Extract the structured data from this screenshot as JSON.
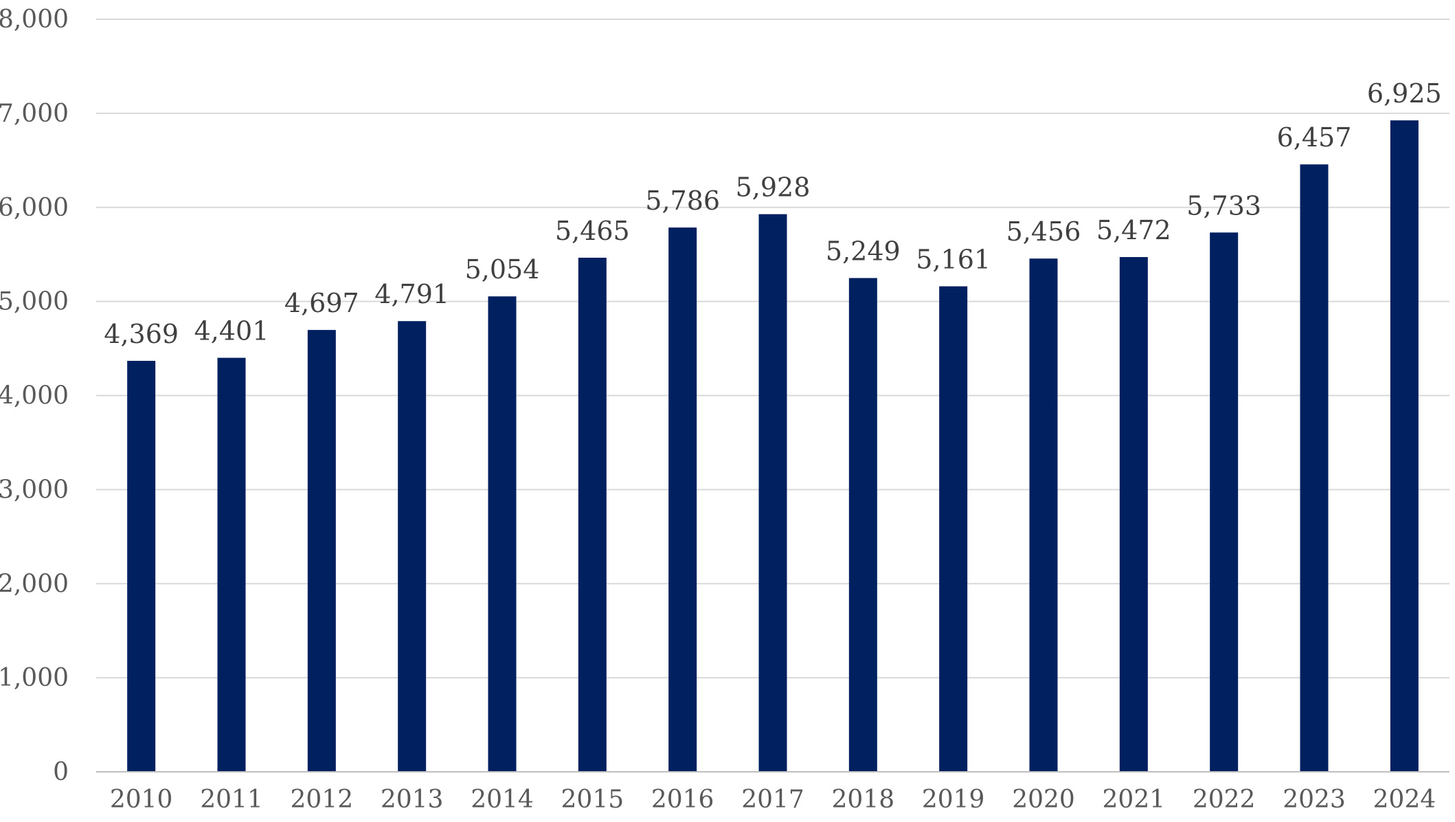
{
  "chart_data": {
    "type": "bar",
    "title": "",
    "xlabel": "",
    "ylabel": "",
    "categories": [
      "2010",
      "2011",
      "2012",
      "2013",
      "2014",
      "2015",
      "2016",
      "2017",
      "2018",
      "2019",
      "2020",
      "2021",
      "2022",
      "2023",
      "2024"
    ],
    "values": [
      4369,
      4401,
      4697,
      4791,
      5054,
      5465,
      5786,
      5928,
      5249,
      5161,
      5456,
      5472,
      5733,
      6457,
      6925
    ],
    "data_labels": [
      "4,369",
      "4,401",
      "4,697",
      "4,791",
      "5,054",
      "5,465",
      "5,786",
      "5,928",
      "5,249",
      "5,161",
      "5,456",
      "5,472",
      "5,733",
      "6,457",
      "6,925"
    ],
    "ylim": [
      0,
      8000
    ],
    "yticks": [
      0,
      1000,
      2000,
      3000,
      4000,
      5000,
      6000,
      7000,
      8000
    ],
    "ytick_labels": [
      "0",
      "1,000",
      "2,000",
      "3,000",
      "4,000",
      "5,000",
      "6,000",
      "7,000",
      "8,000"
    ],
    "grid": true,
    "legend": "none",
    "bar_color": "#002060"
  }
}
